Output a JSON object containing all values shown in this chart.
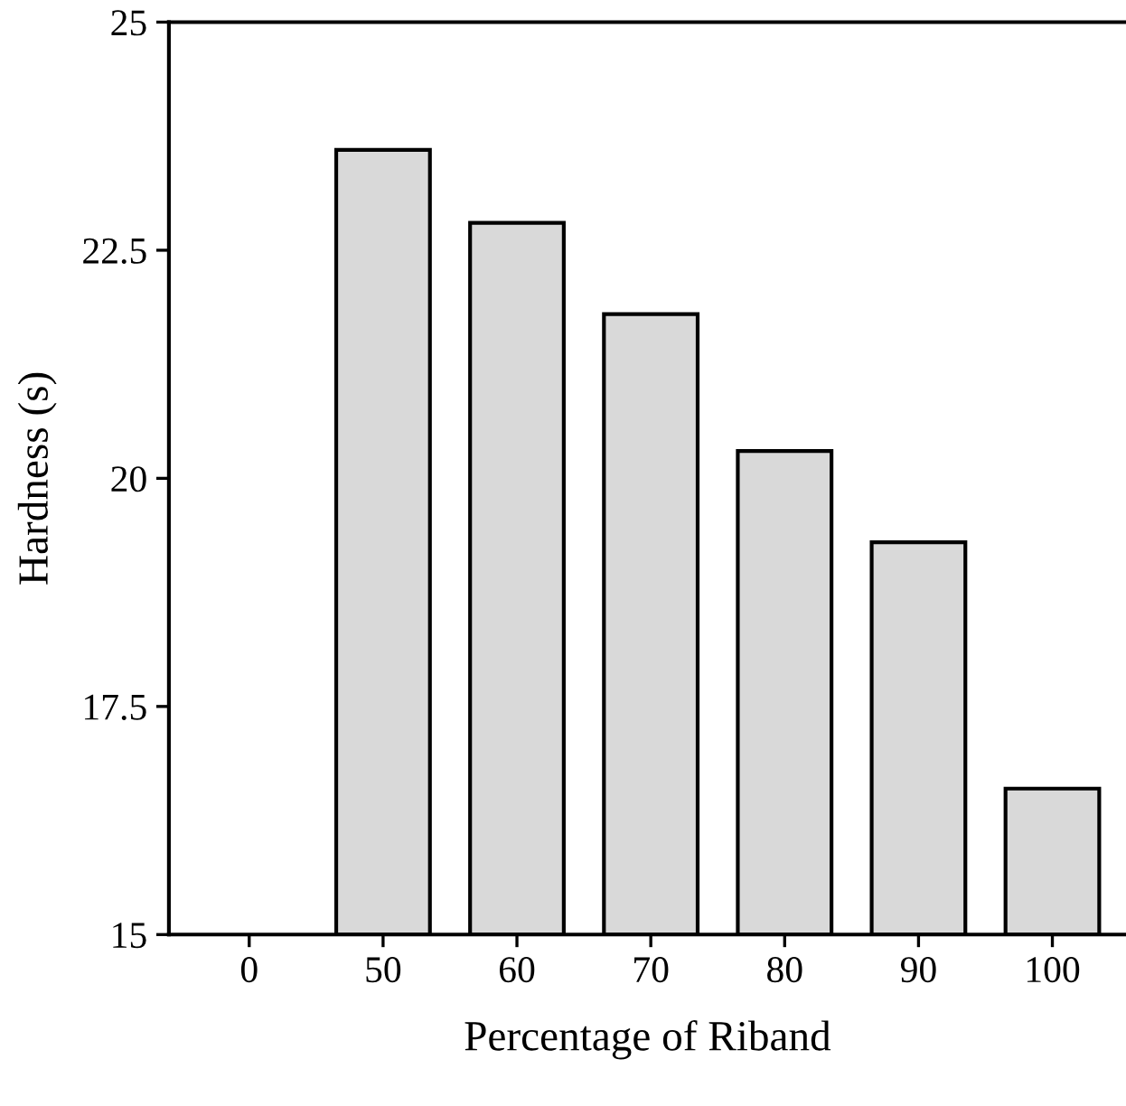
{
  "chart_data": {
    "type": "bar",
    "xlabel": "Percentage of Riband",
    "ylabel": "Hardness (s)",
    "categories": [
      "0",
      "50",
      "60",
      "70",
      "80",
      "90",
      "100"
    ],
    "values": [
      null,
      23.6,
      22.8,
      21.8,
      20.3,
      19.3,
      16.6
    ],
    "color": "#d9d9d9",
    "ylim": [
      15,
      25
    ],
    "yticks": [
      15,
      17.5,
      20,
      22.5,
      25
    ],
    "grid": false,
    "legend": false
  }
}
